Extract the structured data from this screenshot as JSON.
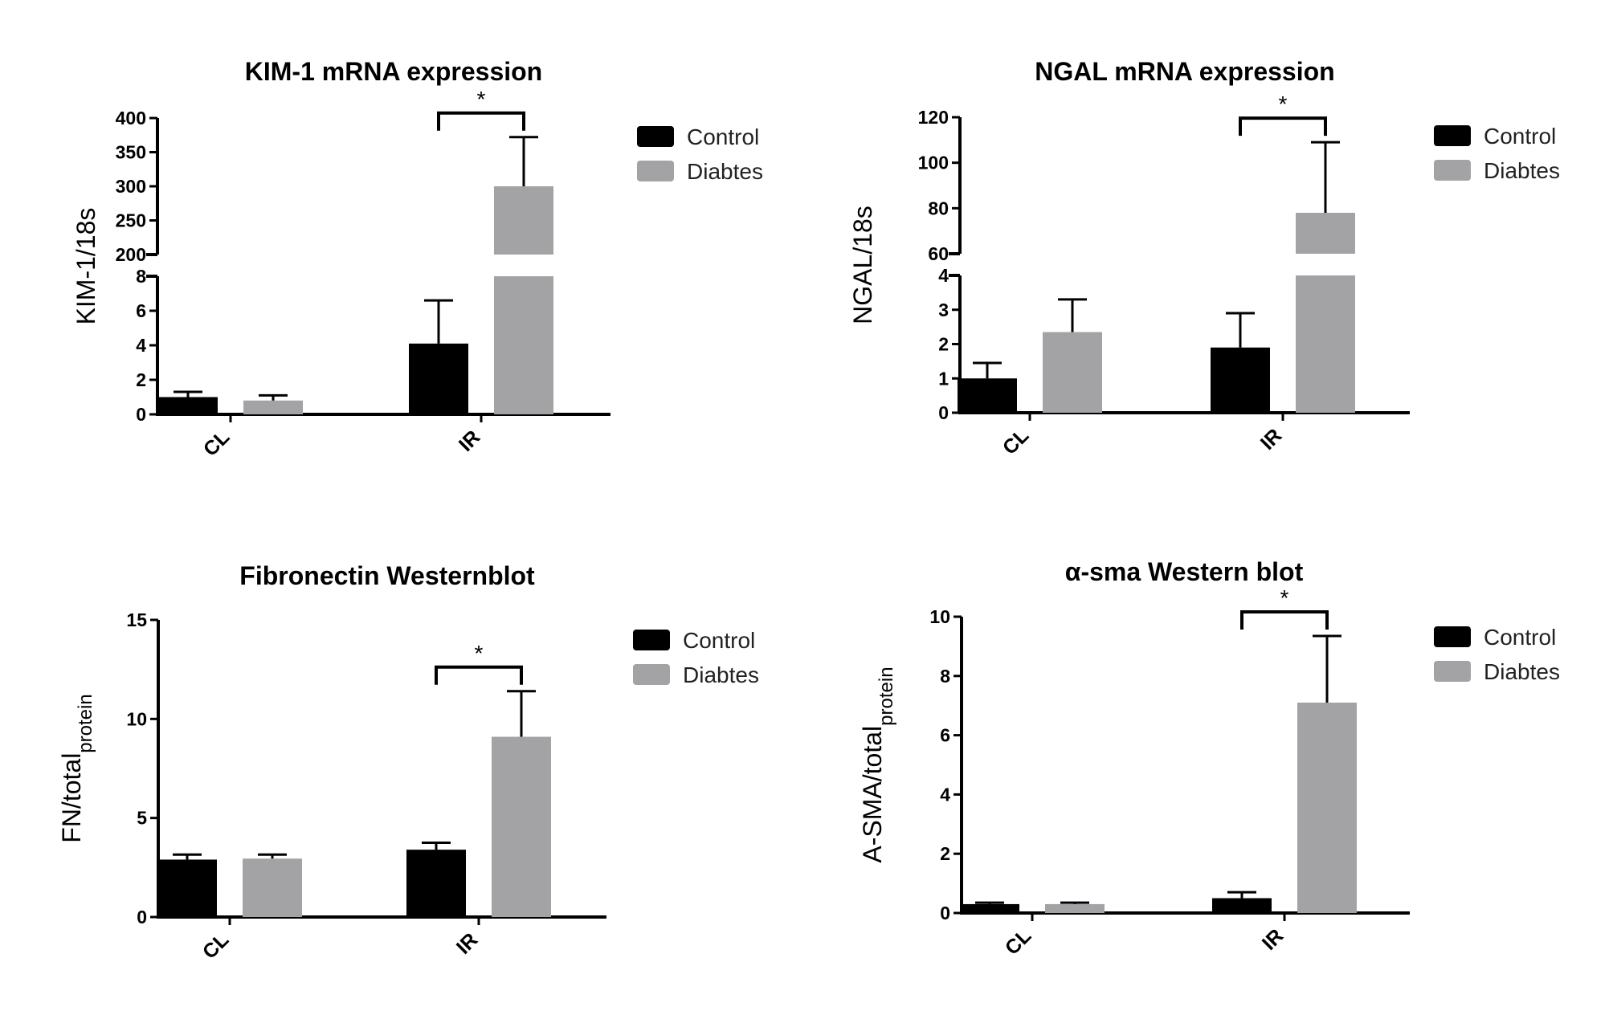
{
  "colors": {
    "control": "#000000",
    "diabetes": "#a3a3a6",
    "axis": "#000000"
  },
  "chart_data": [
    {
      "type": "bar",
      "title": "KIM-1 mRNA expression",
      "ylabel": "KIM-1/18s",
      "ylabel_sub": "",
      "categories": [
        "CL",
        "IR"
      ],
      "series": [
        {
          "name": "Control",
          "values": [
            1.0,
            4.1
          ],
          "errors": [
            0.3,
            2.5
          ]
        },
        {
          "name": "Diabtes",
          "values": [
            0.8,
            300
          ],
          "errors": [
            0.3,
            72
          ]
        }
      ],
      "broken_axis": {
        "lower": [
          0,
          8
        ],
        "upper": [
          200,
          400
        ]
      },
      "lower_ticks": [
        "0",
        "2",
        "4",
        "6",
        "8"
      ],
      "upper_ticks": [
        "200",
        "250",
        "300",
        "350",
        "400"
      ],
      "significance": {
        "category": "IR",
        "label": "*"
      }
    },
    {
      "type": "bar",
      "title": "NGAL mRNA expression",
      "ylabel": "NGAL/18s",
      "ylabel_sub": "",
      "categories": [
        "CL",
        "IR"
      ],
      "series": [
        {
          "name": "Control",
          "values": [
            1.0,
            1.9
          ],
          "errors": [
            0.45,
            1.0
          ]
        },
        {
          "name": "Diabtes",
          "values": [
            2.35,
            78
          ],
          "errors": [
            0.95,
            31
          ]
        }
      ],
      "broken_axis": {
        "lower": [
          0,
          4
        ],
        "upper": [
          60,
          120
        ]
      },
      "lower_ticks": [
        "0",
        "1",
        "2",
        "3",
        "4"
      ],
      "upper_ticks": [
        "60",
        "80",
        "100",
        "120"
      ],
      "significance": {
        "category": "IR",
        "label": "*"
      }
    },
    {
      "type": "bar",
      "title": "Fibronectin Westernblot",
      "ylabel": "FN/total",
      "ylabel_sub": "protein",
      "categories": [
        "CL",
        "IR"
      ],
      "series": [
        {
          "name": "Control",
          "values": [
            2.9,
            3.4
          ],
          "errors": [
            0.25,
            0.35
          ]
        },
        {
          "name": "Diabtes",
          "values": [
            2.95,
            9.1
          ],
          "errors": [
            0.2,
            2.3
          ]
        }
      ],
      "ylim": [
        0,
        15
      ],
      "ticks": [
        "0",
        "5",
        "10",
        "15"
      ],
      "significance": {
        "category": "IR",
        "label": "*"
      }
    },
    {
      "type": "bar",
      "title": "α-sma Western blot",
      "ylabel": "A-SMA/total",
      "ylabel_sub": "protein",
      "categories": [
        "CL",
        "IR"
      ],
      "series": [
        {
          "name": "Control",
          "values": [
            0.3,
            0.5
          ],
          "errors": [
            0.05,
            0.2
          ]
        },
        {
          "name": "Diabtes",
          "values": [
            0.3,
            7.1
          ],
          "errors": [
            0.05,
            2.25
          ]
        }
      ],
      "ylim": [
        0,
        10
      ],
      "ticks": [
        "0",
        "2",
        "4",
        "6",
        "8",
        "10"
      ],
      "significance": {
        "category": "IR",
        "label": "*"
      }
    }
  ]
}
